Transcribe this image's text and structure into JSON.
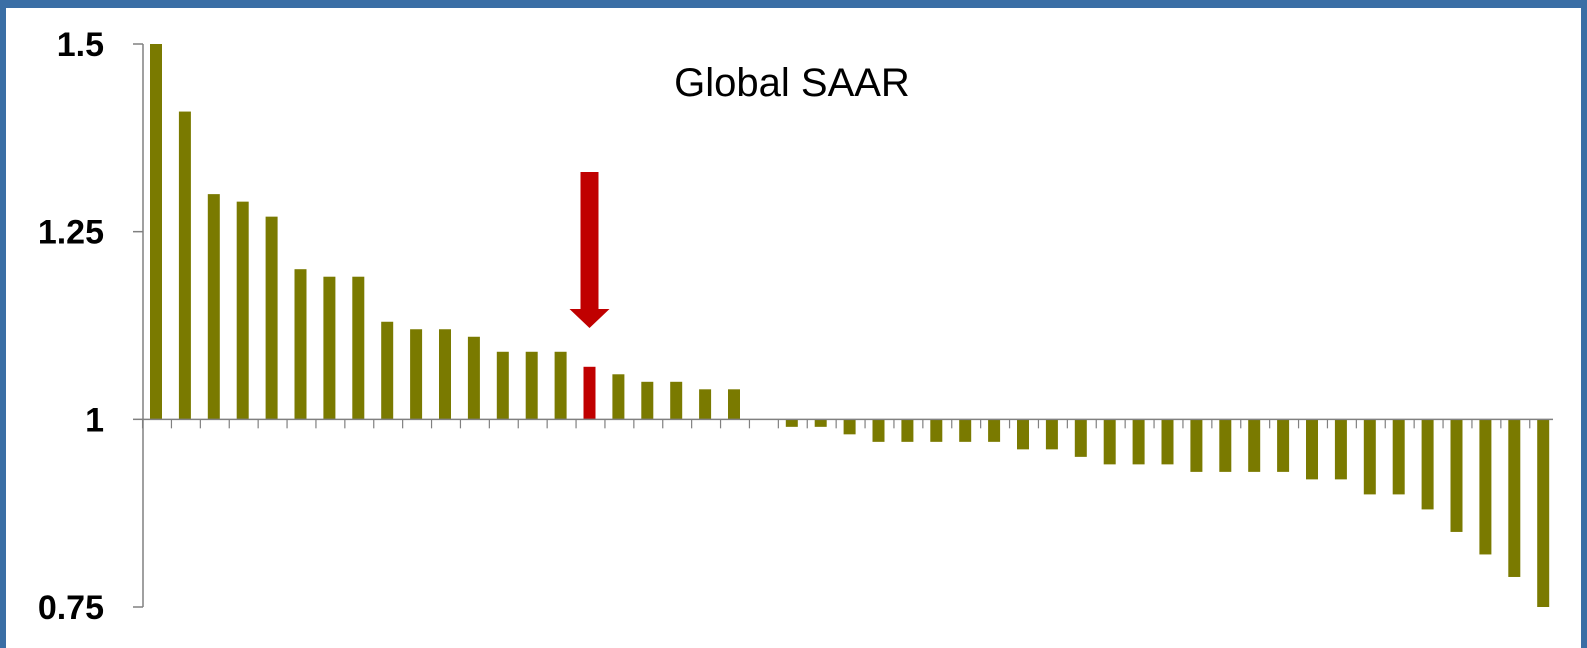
{
  "colors": {
    "frame": "#3a6ea5",
    "bar": "#7a7a00",
    "highlight": "#c00000",
    "axis": "#808080"
  },
  "chart_data": {
    "type": "bar",
    "title": "Global SAAR",
    "xlabel": "",
    "ylabel": "",
    "ylim": [
      0.75,
      1.5
    ],
    "baseline": 1,
    "yticks": [
      {
        "value": 1.5,
        "label": "1.5"
      },
      {
        "value": 1.25,
        "label": "1.25"
      },
      {
        "value": 1,
        "label": "1"
      },
      {
        "value": 0.75,
        "label": "0.75"
      }
    ],
    "grid": false,
    "legend": "none",
    "highlight_index": 15,
    "annotation": "downward red arrow above the highlighted bar",
    "values": [
      1.5,
      1.41,
      1.3,
      1.29,
      1.27,
      1.2,
      1.19,
      1.19,
      1.13,
      1.12,
      1.12,
      1.11,
      1.09,
      1.09,
      1.09,
      1.07,
      1.06,
      1.05,
      1.05,
      1.04,
      1.04,
      1.0,
      0.99,
      0.99,
      0.98,
      0.97,
      0.97,
      0.97,
      0.97,
      0.97,
      0.96,
      0.96,
      0.95,
      0.94,
      0.94,
      0.94,
      0.93,
      0.93,
      0.93,
      0.93,
      0.92,
      0.92,
      0.9,
      0.9,
      0.88,
      0.85,
      0.82,
      0.79,
      0.75
    ]
  }
}
